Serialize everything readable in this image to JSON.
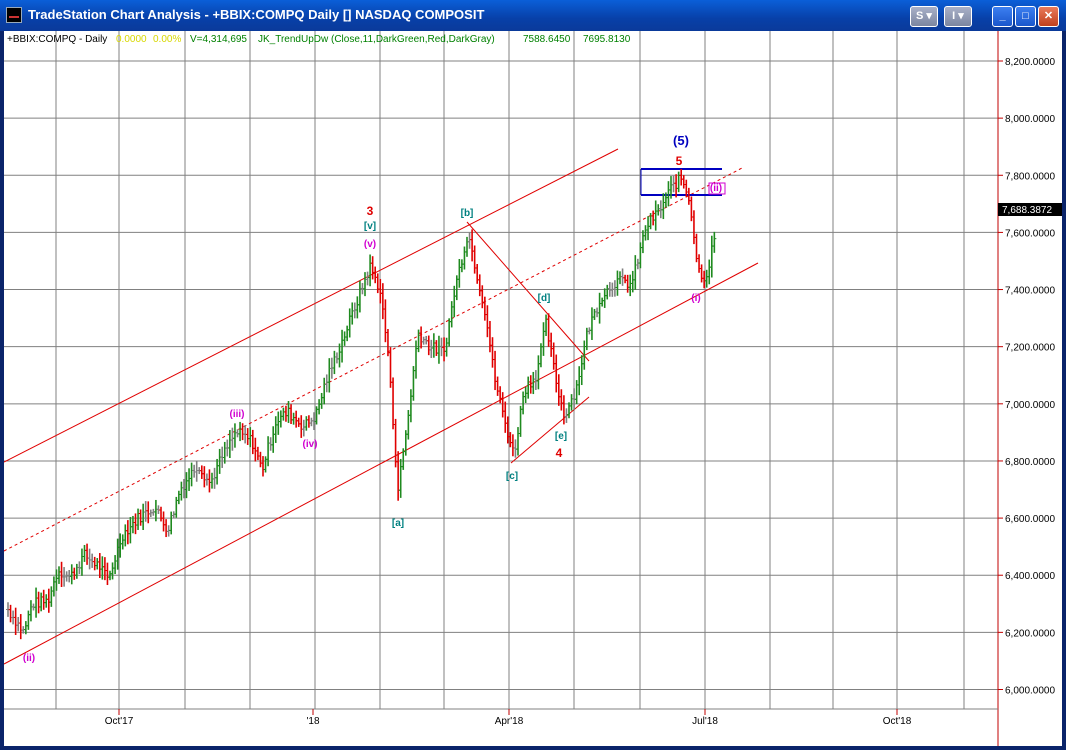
{
  "window": {
    "title": "TradeStation Chart Analysis - +BBIX:COMPQ Daily [] NASDAQ COMPOSIT",
    "buttons": {
      "s_menu": "S ▾",
      "i_menu": "I ▾",
      "minimize": "_",
      "maximize": "□",
      "close": "✕"
    }
  },
  "status": {
    "symbol": "+BBIX:COMPQ - Daily",
    "change": "0.0000",
    "change_pct": "0.00%",
    "volume": "V=4,314,695",
    "indicator": "JK_TrendUpDw (Close,11,DarkGreen,Red,DarkGray)",
    "value1": "7588.6450",
    "value2": "7695.8130"
  },
  "colors": {
    "up": "#1f8a1f",
    "down": "#e00000",
    "neutral": "#808080",
    "price_axis": "#c00000",
    "current_price_bg": "#000000"
  },
  "chart_data": {
    "type": "bar",
    "y_axis_labels": [
      "8,200.0000",
      "8,000.0000",
      "7,800.0000",
      "7,600.0000",
      "7,400.0000",
      "7,200.0000",
      "7,000.0000",
      "6,800.0000",
      "6,600.0000",
      "6,400.0000",
      "6,200.0000",
      "6,000.0000"
    ],
    "y_values": [
      8200,
      8000,
      7800,
      7600,
      7400,
      7200,
      7000,
      6800,
      6600,
      6400,
      6200,
      6000
    ],
    "ylim": [
      5950,
      8300
    ],
    "x_labels": [
      "Oct'17",
      "'18",
      "Apr'18",
      "Jul'18",
      "Oct'18"
    ],
    "current_price": "7,688.3872",
    "wave_labels": [
      {
        "text": "(ii)",
        "color": "#d000d0"
      },
      {
        "text": "(iii)",
        "color": "#d000d0"
      },
      {
        "text": "(iv)",
        "color": "#d000d0"
      },
      {
        "text": "(v)",
        "color": "#d000d0"
      },
      {
        "text": "[v]",
        "color": "#008080"
      },
      {
        "text": "3",
        "color": "#e00000"
      },
      {
        "text": "[a]",
        "color": "#008080"
      },
      {
        "text": "[b]",
        "color": "#008080"
      },
      {
        "text": "[c]",
        "color": "#008080"
      },
      {
        "text": "[d]",
        "color": "#008080"
      },
      {
        "text": "[e]",
        "color": "#008080"
      },
      {
        "text": "4",
        "color": "#e00000"
      },
      {
        "text": "5",
        "color": "#e00000"
      },
      {
        "text": "(5)",
        "color": "#0000c0"
      },
      {
        "text": "(i)",
        "color": "#d000d0"
      },
      {
        "text": "(ii)",
        "color": "#d000d0"
      }
    ]
  }
}
